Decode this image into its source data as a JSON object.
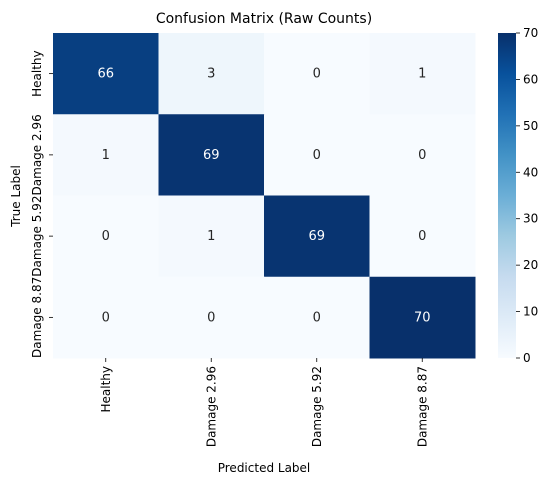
{
  "chart_data": {
    "type": "heatmap",
    "title": "Confusion Matrix (Raw Counts)",
    "xlabel": "Predicted Label",
    "ylabel": "True Label",
    "x_categories": [
      "Healthy",
      "Damage 2.96",
      "Damage 5.92",
      "Damage 8.87"
    ],
    "y_categories": [
      "Healthy",
      "Damage 2.96",
      "Damage 5.92",
      "Damage 8.87"
    ],
    "values": [
      [
        66,
        3,
        0,
        1
      ],
      [
        1,
        69,
        0,
        0
      ],
      [
        0,
        1,
        69,
        0
      ],
      [
        0,
        0,
        0,
        70
      ]
    ],
    "colorbar": {
      "min": 0,
      "max": 70,
      "ticks": [
        0,
        10,
        20,
        30,
        40,
        50,
        60,
        70
      ]
    },
    "colormap": "Blues",
    "colors": {
      "low": "#f7fbff",
      "high": "#08306b",
      "text_dark": "#262626",
      "text_light": "#ffffff"
    }
  }
}
